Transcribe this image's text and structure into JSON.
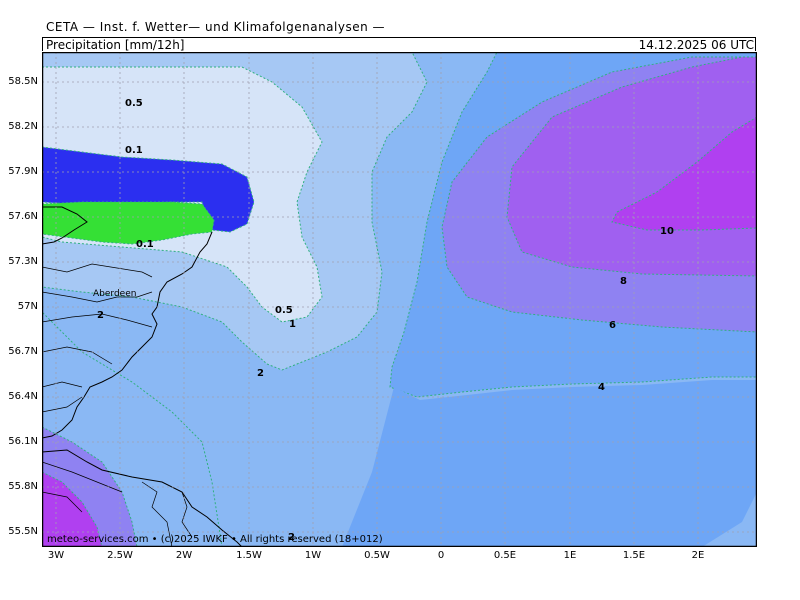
{
  "header": {
    "title": "CETA — Inst. f. Wetter— und Klimafolgenanalysen —",
    "parameter": "Precipitation [mm/12h]",
    "valid_time": "14.12.2025 06 UTC"
  },
  "axes": {
    "y_labels": [
      "58.5N",
      "58.2N",
      "57.9N",
      "57.6N",
      "57.3N",
      "57N",
      "56.7N",
      "56.4N",
      "56.1N",
      "55.8N",
      "55.5N"
    ],
    "x_labels": [
      "3W",
      "2.5W",
      "2W",
      "1.5W",
      "1W",
      "0.5W",
      "0",
      "0.5E",
      "1E",
      "1.5E",
      "2E"
    ]
  },
  "contour_labels": {
    "c_05_top": "0.5",
    "c_01_a": "0.1",
    "c_01_b": "0.1",
    "c_05_bot": "0.5",
    "c_1": "1",
    "c_2_a": "2",
    "c_2_b": "2",
    "c_2_c": "2",
    "c_4": "4",
    "c_6": "6",
    "c_8": "8",
    "c_10": "10"
  },
  "places": {
    "aberdeen": "Aberdeen"
  },
  "footer": {
    "credit": "meteo-services.com • (c)2025 IWKF • All rights reserved (18+012)"
  },
  "colors": {
    "p4": "#6ea6f6",
    "p2": "#8ab8f4",
    "p1": "#a6c8f4",
    "p05": "#d6e4f8",
    "p01": "#2b2ff0",
    "green": "#35e035",
    "p6": "#8f82f2",
    "p8": "#a060f0",
    "p10": "#b040f0",
    "grid": "#a0a0b0",
    "contour": "#30b080"
  }
}
